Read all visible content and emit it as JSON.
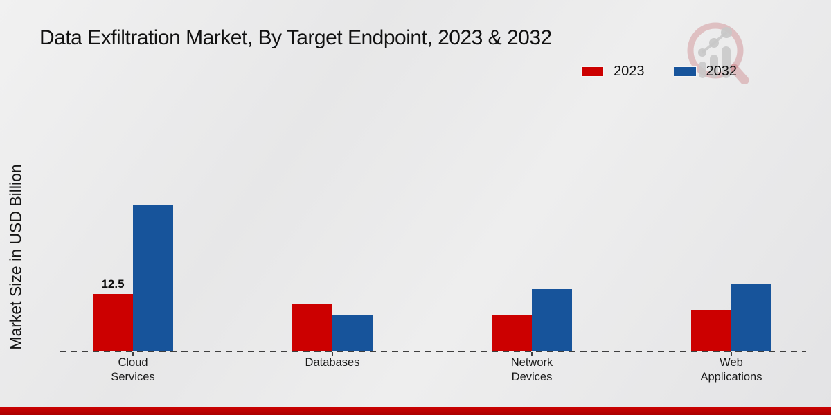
{
  "header": {
    "title": "Data Exfiltration Market, By Target Endpoint, 2023 & 2032"
  },
  "legend": {
    "items": [
      {
        "label": "2023",
        "color": "#cc0000"
      },
      {
        "label": "2032",
        "color": "#17549b"
      }
    ]
  },
  "y_axis": {
    "label": "Market Size in USD Billion"
  },
  "x_axis": {
    "category_labels": [
      [
        "Cloud",
        "Services"
      ],
      [
        "Databases"
      ],
      [
        "Network",
        "Devices"
      ],
      [
        "Web",
        "Applications"
      ]
    ]
  },
  "chart_data": {
    "type": "bar",
    "title": "Data Exfiltration Market, By Target Endpoint, 2023 & 2032",
    "categories": [
      "Cloud Services",
      "Databases",
      "Network Devices",
      "Web Applications"
    ],
    "series": [
      {
        "name": "2023",
        "color": "#cc0000",
        "values": [
          12.5,
          10.2,
          7.8,
          9.0
        ],
        "data_labels": [
          "12.5",
          null,
          null,
          null
        ]
      },
      {
        "name": "2032",
        "color": "#17549b",
        "values": [
          32.0,
          7.8,
          13.6,
          14.8
        ],
        "data_labels": [
          null,
          null,
          null,
          null
        ]
      }
    ],
    "xlabel": "",
    "ylabel": "Market Size in USD Billion",
    "ylim": [
      0,
      35
    ],
    "grid": false,
    "axis_style": "dashed-baseline-only",
    "legend_position": "top-right"
  },
  "branding": {
    "logo_icon": "magnifier-trend-chart-watermark"
  },
  "footer": {
    "bar_color": "#c00000"
  }
}
